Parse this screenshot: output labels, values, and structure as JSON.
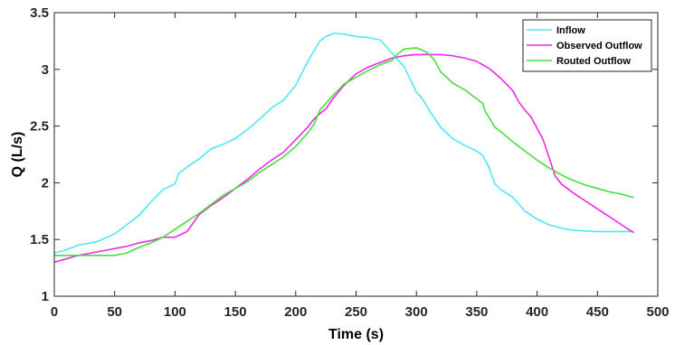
{
  "chart_data": {
    "type": "line",
    "title": "",
    "xlabel": "Time (s)",
    "ylabel": "Q (L/s)",
    "xlim": [
      0,
      500
    ],
    "ylim": [
      1,
      3.5
    ],
    "x_ticks": [
      0,
      50,
      100,
      150,
      200,
      250,
      300,
      350,
      400,
      450,
      500
    ],
    "y_ticks": [
      1,
      1.5,
      2,
      2.5,
      3,
      3.5
    ],
    "x_tick_labels": [
      "0",
      "50",
      "100",
      "150",
      "200",
      "250",
      "300",
      "350",
      "400",
      "450",
      "500"
    ],
    "y_tick_labels": [
      "1",
      "1.5",
      "2",
      "2.5",
      "3",
      "3.5"
    ],
    "grid": false,
    "legend_position": "top-right",
    "series": [
      {
        "name": "Inflow",
        "color": "#4de8f5",
        "points": [
          [
            0,
            1.38
          ],
          [
            10,
            1.41
          ],
          [
            20,
            1.45
          ],
          [
            35,
            1.48
          ],
          [
            50,
            1.55
          ],
          [
            60,
            1.63
          ],
          [
            70,
            1.71
          ],
          [
            80,
            1.83
          ],
          [
            90,
            1.94
          ],
          [
            100,
            1.99
          ],
          [
            103,
            2.08
          ],
          [
            110,
            2.14
          ],
          [
            120,
            2.21
          ],
          [
            130,
            2.3
          ],
          [
            140,
            2.34
          ],
          [
            150,
            2.39
          ],
          [
            160,
            2.47
          ],
          [
            170,
            2.56
          ],
          [
            180,
            2.66
          ],
          [
            190,
            2.73
          ],
          [
            200,
            2.86
          ],
          [
            210,
            3.07
          ],
          [
            220,
            3.25
          ],
          [
            225,
            3.29
          ],
          [
            232,
            3.32
          ],
          [
            240,
            3.31
          ],
          [
            250,
            3.29
          ],
          [
            260,
            3.28
          ],
          [
            270,
            3.26
          ],
          [
            280,
            3.14
          ],
          [
            290,
            3.02
          ],
          [
            295,
            2.91
          ],
          [
            300,
            2.8
          ],
          [
            305,
            2.74
          ],
          [
            310,
            2.65
          ],
          [
            315,
            2.57
          ],
          [
            320,
            2.49
          ],
          [
            330,
            2.39
          ],
          [
            340,
            2.33
          ],
          [
            350,
            2.28
          ],
          [
            355,
            2.24
          ],
          [
            358,
            2.18
          ],
          [
            360,
            2.14
          ],
          [
            365,
            1.99
          ],
          [
            370,
            1.94
          ],
          [
            380,
            1.87
          ],
          [
            385,
            1.81
          ],
          [
            390,
            1.75
          ],
          [
            400,
            1.68
          ],
          [
            410,
            1.63
          ],
          [
            420,
            1.6
          ],
          [
            430,
            1.58
          ],
          [
            450,
            1.57
          ],
          [
            480,
            1.57
          ]
        ]
      },
      {
        "name": "Observed Outflow",
        "color": "#f227eb",
        "points": [
          [
            0,
            1.3
          ],
          [
            10,
            1.33
          ],
          [
            20,
            1.36
          ],
          [
            30,
            1.38
          ],
          [
            40,
            1.4
          ],
          [
            50,
            1.42
          ],
          [
            60,
            1.44
          ],
          [
            70,
            1.47
          ],
          [
            80,
            1.49
          ],
          [
            90,
            1.52
          ],
          [
            100,
            1.52
          ],
          [
            110,
            1.57
          ],
          [
            120,
            1.72
          ],
          [
            130,
            1.8
          ],
          [
            140,
            1.87
          ],
          [
            150,
            1.95
          ],
          [
            160,
            2.03
          ],
          [
            170,
            2.12
          ],
          [
            180,
            2.2
          ],
          [
            190,
            2.27
          ],
          [
            200,
            2.38
          ],
          [
            210,
            2.49
          ],
          [
            215,
            2.56
          ],
          [
            220,
            2.61
          ],
          [
            225,
            2.65
          ],
          [
            230,
            2.73
          ],
          [
            240,
            2.86
          ],
          [
            250,
            2.96
          ],
          [
            260,
            3.02
          ],
          [
            270,
            3.06
          ],
          [
            280,
            3.1
          ],
          [
            290,
            3.12
          ],
          [
            300,
            3.13
          ],
          [
            310,
            3.13
          ],
          [
            320,
            3.13
          ],
          [
            330,
            3.12
          ],
          [
            340,
            3.1
          ],
          [
            350,
            3.07
          ],
          [
            360,
            3.01
          ],
          [
            370,
            2.92
          ],
          [
            380,
            2.81
          ],
          [
            385,
            2.71
          ],
          [
            390,
            2.64
          ],
          [
            395,
            2.58
          ],
          [
            400,
            2.48
          ],
          [
            405,
            2.38
          ],
          [
            410,
            2.22
          ],
          [
            415,
            2.06
          ],
          [
            420,
            1.99
          ],
          [
            430,
            1.91
          ],
          [
            440,
            1.84
          ],
          [
            450,
            1.77
          ],
          [
            460,
            1.7
          ],
          [
            470,
            1.63
          ],
          [
            480,
            1.56
          ]
        ]
      },
      {
        "name": "Routed Outflow",
        "color": "#47e038",
        "points": [
          [
            0,
            1.36
          ],
          [
            10,
            1.36
          ],
          [
            20,
            1.36
          ],
          [
            30,
            1.36
          ],
          [
            40,
            1.36
          ],
          [
            50,
            1.36
          ],
          [
            60,
            1.38
          ],
          [
            70,
            1.43
          ],
          [
            80,
            1.47
          ],
          [
            90,
            1.52
          ],
          [
            100,
            1.59
          ],
          [
            110,
            1.66
          ],
          [
            120,
            1.73
          ],
          [
            130,
            1.81
          ],
          [
            140,
            1.89
          ],
          [
            150,
            1.95
          ],
          [
            160,
            2.01
          ],
          [
            170,
            2.09
          ],
          [
            180,
            2.16
          ],
          [
            190,
            2.23
          ],
          [
            200,
            2.32
          ],
          [
            210,
            2.44
          ],
          [
            215,
            2.51
          ],
          [
            220,
            2.64
          ],
          [
            230,
            2.76
          ],
          [
            240,
            2.87
          ],
          [
            250,
            2.93
          ],
          [
            260,
            2.99
          ],
          [
            270,
            3.04
          ],
          [
            280,
            3.08
          ],
          [
            285,
            3.14
          ],
          [
            290,
            3.18
          ],
          [
            300,
            3.19
          ],
          [
            305,
            3.17
          ],
          [
            310,
            3.14
          ],
          [
            315,
            3.08
          ],
          [
            320,
            2.98
          ],
          [
            330,
            2.88
          ],
          [
            340,
            2.82
          ],
          [
            350,
            2.74
          ],
          [
            355,
            2.7
          ],
          [
            357,
            2.63
          ],
          [
            360,
            2.58
          ],
          [
            365,
            2.49
          ],
          [
            370,
            2.45
          ],
          [
            380,
            2.36
          ],
          [
            390,
            2.28
          ],
          [
            400,
            2.2
          ],
          [
            410,
            2.13
          ],
          [
            420,
            2.07
          ],
          [
            430,
            2.02
          ],
          [
            440,
            1.98
          ],
          [
            450,
            1.95
          ],
          [
            460,
            1.92
          ],
          [
            470,
            1.9
          ],
          [
            480,
            1.87
          ]
        ]
      }
    ]
  }
}
